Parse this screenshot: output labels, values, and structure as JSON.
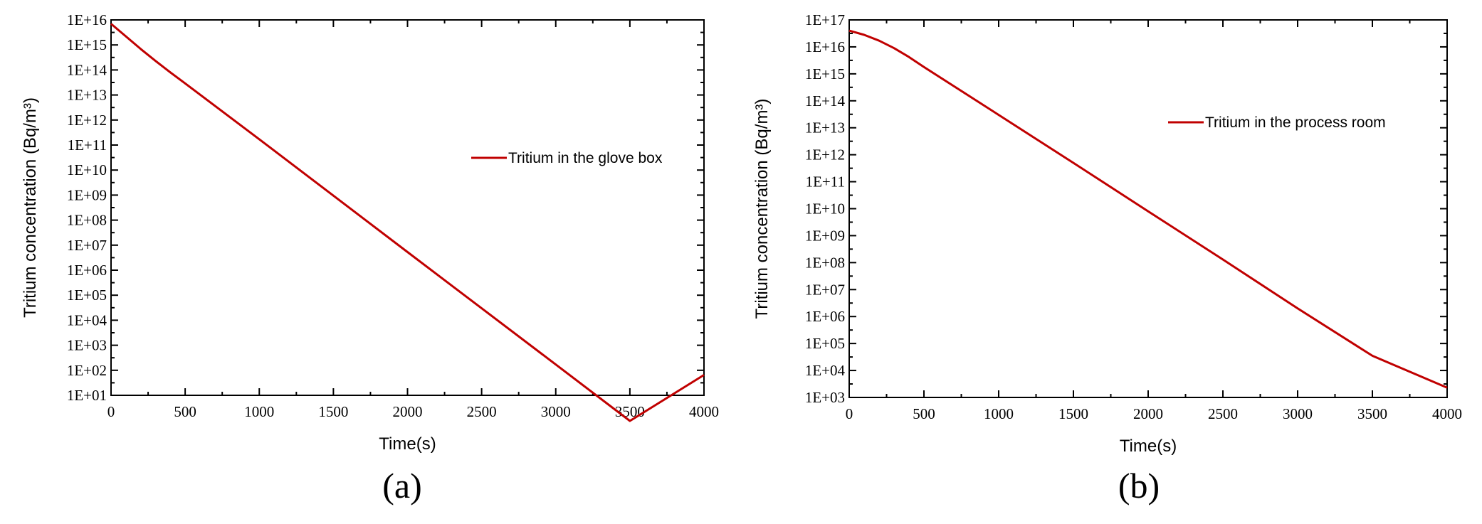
{
  "figure": {
    "line_color": "#c00000",
    "axis_color": "#000000",
    "panels": [
      {
        "caption": "(a)",
        "chart_data": {
          "type": "line",
          "xlabel": "Time(s)",
          "ylabel": "Tritium concentration (Bq/m³)",
          "xlim": [
            0,
            4000
          ],
          "ylim": [
            10.0,
            1e+16
          ],
          "yscale": "log",
          "legend_position": "right-middle",
          "grid": false,
          "x_ticks": [
            "0",
            "500",
            "1000",
            "1500",
            "2000",
            "2500",
            "3000",
            "3500",
            "4000"
          ],
          "y_ticks": [
            "1E+01",
            "1E+02",
            "1E+03",
            "1E+04",
            "1E+05",
            "1E+06",
            "1E+07",
            "1E+08",
            "1E+09",
            "1E+10",
            "1E+11",
            "1E+12",
            "1E+13",
            "1E+14",
            "1E+15",
            "1E+16"
          ],
          "series": [
            {
              "name": "Tritium in the glove box",
              "x": [
                0,
                100,
                200,
                300,
                400,
                500,
                1000,
                1500,
                2000,
                2500,
                3000,
                3500,
                4000
              ],
              "y": [
                7000000000000000.0,
                2200000000000000.0,
                690000000000000.0,
                230000000000000.0,
                80000000000000.0,
                29000000000000.0,
                170000000000.0,
                950000000.0,
                5300000.0,
                30000.0,
                170.0,
                0.95,
                65.0
              ]
            }
          ]
        }
      },
      {
        "caption": "(b)",
        "chart_data": {
          "type": "line",
          "xlabel": "Time(s)",
          "ylabel": "Tritium concentration (Bq/m³)",
          "xlim": [
            0,
            4000
          ],
          "ylim": [
            1000.0,
            1e+17
          ],
          "yscale": "log",
          "legend_position": "top-right",
          "grid": false,
          "x_ticks": [
            "0",
            "500",
            "1000",
            "1500",
            "2000",
            "2500",
            "3000",
            "3500",
            "4000"
          ],
          "y_ticks": [
            "1E+03",
            "1E+04",
            "1E+05",
            "1E+06",
            "1E+07",
            "1E+08",
            "1E+09",
            "1E+10",
            "1E+11",
            "1E+12",
            "1E+13",
            "1E+14",
            "1E+15",
            "1E+16",
            "1E+17"
          ],
          "series": [
            {
              "name": "Tritium in the process room",
              "x": [
                0,
                100,
                200,
                300,
                400,
                500,
                1000,
                1500,
                2000,
                2500,
                3000,
                3500,
                4000
              ],
              "y": [
                4e+16,
                2.8e+16,
                1.7e+16,
                9000000000000000.0,
                4200000000000000.0,
                1800000000000000.0,
                30000000000000.0,
                500000000000.0,
                8000000000.0,
                130000000.0,
                2000000.0,
                35000.0,
                2300.0
              ]
            }
          ]
        }
      }
    ]
  }
}
